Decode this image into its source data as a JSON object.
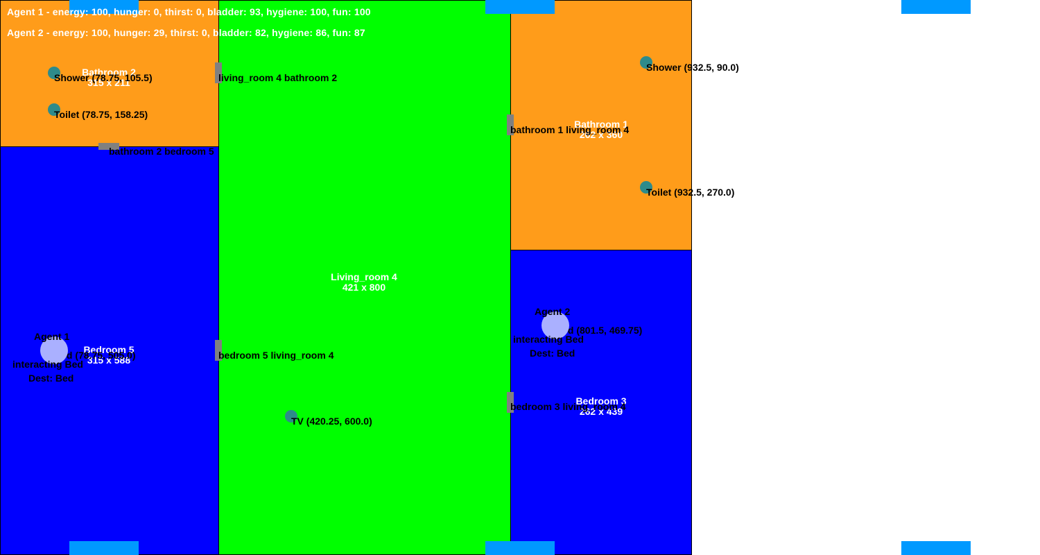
{
  "colors": {
    "bathroom": "#ff9c1a",
    "bedroom": "#0000ff",
    "living_room": "#00ff00",
    "door": "#808080",
    "object": "#2e8b8b",
    "agent": "#aab0ff",
    "window": "#0099ff"
  },
  "stats": {
    "agent1": "Agent 1 - energy: 100, hunger: 0, thirst: 0, bladder: 93, hygiene: 100, fun: 100",
    "agent2": "Agent 2 - energy: 100, hunger: 29, thirst: 0, bladder: 82, hygiene: 86, fun: 87"
  },
  "rooms": {
    "bathroom2": {
      "name": "Bathroom 2",
      "size": "315 x 211"
    },
    "bedroom5": {
      "name": "Bedroom 5",
      "size": "315 x 588"
    },
    "living_room4": {
      "name": "Living_room 4",
      "size": "421 x 800"
    },
    "bathroom1": {
      "name": "Bathroom 1",
      "size": "262 x 360"
    },
    "bedroom3": {
      "name": "Bedroom 3",
      "size": "262 x 439"
    }
  },
  "objects": {
    "shower2": "Shower (78.75, 105.5)",
    "toilet2": "Toilet (78.75, 158.25)",
    "shower1": "Shower (932.5, 90.0)",
    "toilet1": "Toilet (932.5, 270.0)",
    "tv": "TV (420.25, 600.0)",
    "bed5": "Bed (78.75, 505.0)",
    "bed3": "Bed (801.5, 469.75)"
  },
  "doors": {
    "lr4_bath2": "living_room 4 bathroom 2",
    "bath2_bed5": "bathroom 2 bedroom 5",
    "bath1_lr4": "bathroom 1 living_room 4",
    "bed5_lr4": "bedroom 5 living_room 4",
    "bed3_lr4": "bedroom 3 living_room 4"
  },
  "agents": {
    "agent1": {
      "name": "Agent 1",
      "status": "interacting Bed",
      "dest": "Dest: Bed"
    },
    "agent2": {
      "name": "Agent 2",
      "status": "interacting Bed",
      "dest": "Dest: Bed"
    }
  }
}
